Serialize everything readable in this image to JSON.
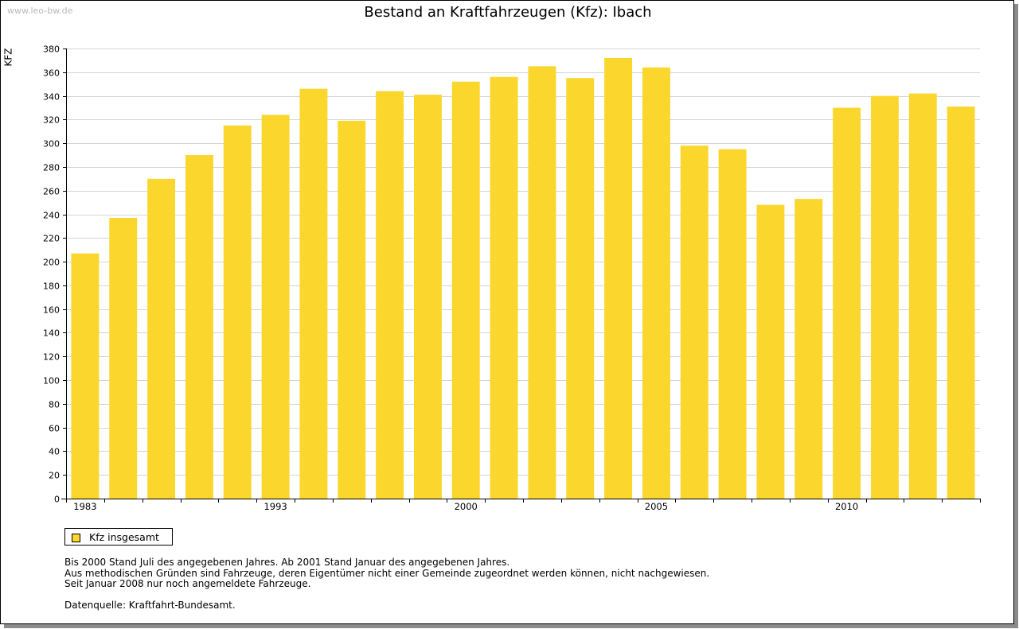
{
  "watermark": "www.leo-bw.de",
  "colors": {
    "bar": "#fbd62c",
    "grid": "#d4d4d4",
    "axis": "#000000"
  },
  "legend": {
    "label": "Kfz insgesamt",
    "icon": "square-swatch"
  },
  "notes": [
    "Bis 2000 Stand Juli des angegebenen Jahres. Ab 2001 Stand Januar des angegebenen Jahres.",
    "Aus methodischen Gründen sind Fahrzeuge, deren Eigentümer nicht einer Gemeinde zugeordnet werden können, nicht nachgewiesen.",
    "Seit Januar 2008 nur noch angemeldete Fahrzeuge."
  ],
  "source": "Datenquelle: Kraftfahrt-Bundesamt.",
  "chart_data": {
    "type": "bar",
    "title": "Bestand an Kraftfahrzeugen (Kfz): Ibach",
    "ylabel": "KFZ",
    "xlabel": "",
    "ylim": [
      0,
      380
    ],
    "yticks": [
      0,
      20,
      40,
      60,
      80,
      100,
      120,
      140,
      160,
      180,
      200,
      220,
      240,
      260,
      280,
      300,
      320,
      340,
      360,
      380
    ],
    "grid": true,
    "legend_position": "bottom-left",
    "x_tick_labels": [
      {
        "index": 0,
        "label": "1983"
      },
      {
        "index": 5,
        "label": "1993"
      },
      {
        "index": 10,
        "label": "2000"
      },
      {
        "index": 15,
        "label": "2005"
      },
      {
        "index": 20,
        "label": "2010"
      }
    ],
    "series": [
      {
        "name": "Kfz insgesamt",
        "values": [
          207,
          237,
          270,
          290,
          315,
          324,
          346,
          319,
          344,
          341,
          352,
          356,
          365,
          355,
          372,
          364,
          298,
          295,
          248,
          253,
          330,
          340,
          342,
          331
        ]
      }
    ]
  }
}
